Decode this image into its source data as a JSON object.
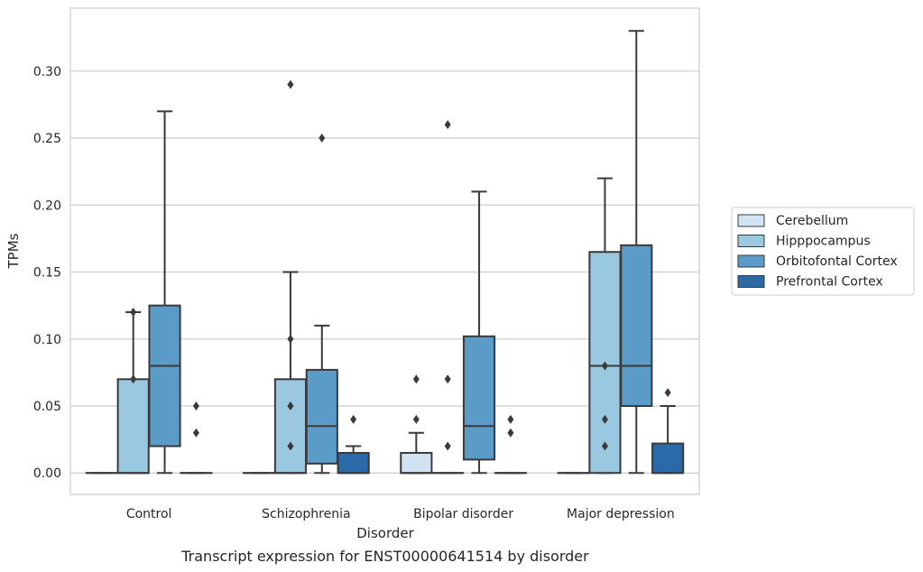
{
  "chart_data": {
    "type": "box",
    "title": "",
    "caption": "Transcript expression for ENST00000641514 by disorder",
    "xlabel": "Disorder",
    "ylabel": "TPMs",
    "ylim": [
      -0.016,
      0.347
    ],
    "yticks": [
      0.0,
      0.05,
      0.1,
      0.15,
      0.2,
      0.25,
      0.3
    ],
    "ytick_labels": [
      "0.00",
      "0.05",
      "0.10",
      "0.15",
      "0.20",
      "0.25",
      "0.30"
    ],
    "grid": true,
    "legend_position": "right",
    "categories": [
      "Control",
      "Schizophrenia",
      "Bipolar disorder",
      "Major depression"
    ],
    "series": [
      {
        "name": "Cerebellum",
        "color": "#d1e2f2",
        "boxes": [
          {
            "whislo": 0,
            "q1": 0,
            "med": 0,
            "q3": 0,
            "whishi": 0,
            "fliers": []
          },
          {
            "whislo": 0,
            "q1": 0,
            "med": 0,
            "q3": 0,
            "whishi": 0,
            "fliers": []
          },
          {
            "whislo": 0,
            "q1": 0,
            "med": 0,
            "q3": 0.015,
            "whishi": 0.03,
            "fliers": [
              0.04,
              0.07
            ]
          },
          {
            "whislo": 0,
            "q1": 0,
            "med": 0,
            "q3": 0,
            "whishi": 0,
            "fliers": []
          }
        ]
      },
      {
        "name": "Hipppocampus",
        "color": "#9ac8e0",
        "boxes": [
          {
            "whislo": 0,
            "q1": 0,
            "med": 0,
            "q3": 0.07,
            "whishi": 0.12,
            "fliers": [
              0.07,
              0.12
            ]
          },
          {
            "whislo": 0,
            "q1": 0,
            "med": 0,
            "q3": 0.07,
            "whishi": 0.15,
            "fliers": [
              0.02,
              0.05,
              0.1,
              0.29
            ]
          },
          {
            "whislo": 0,
            "q1": 0,
            "med": 0,
            "q3": 0,
            "whishi": 0,
            "fliers": [
              0.02,
              0.07,
              0.26
            ]
          },
          {
            "whislo": 0,
            "q1": 0,
            "med": 0.08,
            "q3": 0.165,
            "whishi": 0.22,
            "fliers": [
              0.02,
              0.04,
              0.08
            ]
          }
        ]
      },
      {
        "name": "Orbitofontal Cortex",
        "color": "#5b9bc8",
        "boxes": [
          {
            "whislo": 0,
            "q1": 0.02,
            "med": 0.08,
            "q3": 0.125,
            "whishi": 0.27,
            "fliers": []
          },
          {
            "whislo": 0,
            "q1": 0.007,
            "med": 0.035,
            "q3": 0.077,
            "whishi": 0.11,
            "fliers": [
              0.25
            ]
          },
          {
            "whislo": 0,
            "q1": 0.01,
            "med": 0.035,
            "q3": 0.102,
            "whishi": 0.21,
            "fliers": []
          },
          {
            "whislo": 0,
            "q1": 0.05,
            "med": 0.08,
            "q3": 0.17,
            "whishi": 0.33,
            "fliers": []
          }
        ]
      },
      {
        "name": "Prefrontal Cortex",
        "color": "#2a6aa8",
        "boxes": [
          {
            "whislo": 0,
            "q1": 0,
            "med": 0,
            "q3": 0,
            "whishi": 0,
            "fliers": [
              0.03,
              0.05
            ]
          },
          {
            "whislo": 0,
            "q1": 0,
            "med": 0,
            "q3": 0.015,
            "whishi": 0.02,
            "fliers": [
              0.04
            ]
          },
          {
            "whislo": 0,
            "q1": 0,
            "med": 0,
            "q3": 0,
            "whishi": 0,
            "fliers": [
              0.03,
              0.04
            ]
          },
          {
            "whislo": 0,
            "q1": 0,
            "med": 0,
            "q3": 0.022,
            "whishi": 0.05,
            "fliers": [
              0.06
            ]
          }
        ]
      }
    ]
  }
}
